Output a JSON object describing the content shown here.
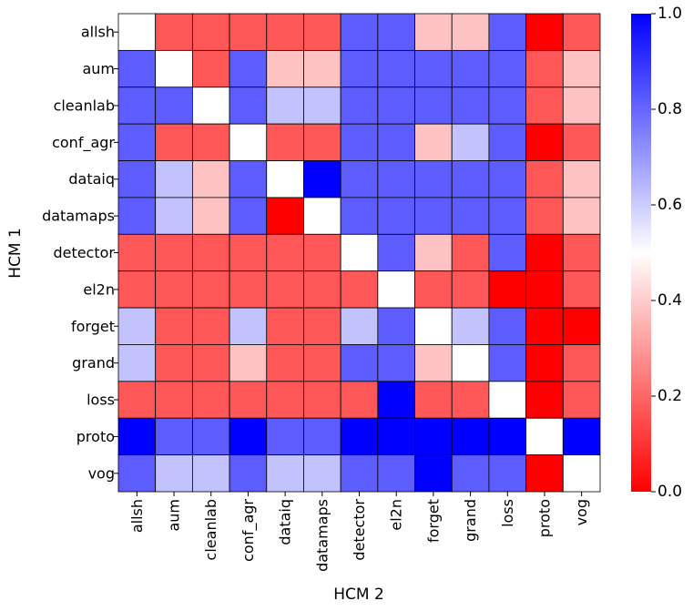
{
  "chart_data": {
    "type": "heatmap",
    "title": "",
    "xlabel": "HCM 2",
    "ylabel": "HCM 1",
    "rows": [
      "allsh",
      "aum",
      "cleanlab",
      "conf_agr",
      "dataiq",
      "datamaps",
      "detector",
      "el2n",
      "forget",
      "grand",
      "loss",
      "proto",
      "vog"
    ],
    "columns": [
      "allsh",
      "aum",
      "cleanlab",
      "conf_agr",
      "dataiq",
      "datamaps",
      "detector",
      "el2n",
      "forget",
      "grand",
      "loss",
      "proto",
      "vog"
    ],
    "values": [
      [
        0.5,
        0.17,
        0.17,
        0.17,
        0.17,
        0.17,
        0.82,
        0.82,
        0.38,
        0.38,
        0.82,
        0.0,
        0.17
      ],
      [
        0.82,
        0.5,
        0.17,
        0.82,
        0.38,
        0.38,
        0.82,
        0.82,
        0.82,
        0.82,
        0.82,
        0.17,
        0.38
      ],
      [
        0.82,
        0.82,
        0.5,
        0.82,
        0.62,
        0.62,
        0.82,
        0.82,
        0.82,
        0.82,
        0.82,
        0.17,
        0.38
      ],
      [
        0.82,
        0.17,
        0.17,
        0.5,
        0.17,
        0.17,
        0.82,
        0.82,
        0.38,
        0.62,
        0.82,
        0.0,
        0.17
      ],
      [
        0.82,
        0.62,
        0.38,
        0.82,
        0.5,
        1.0,
        0.82,
        0.82,
        0.82,
        0.82,
        0.82,
        0.17,
        0.38
      ],
      [
        0.82,
        0.62,
        0.38,
        0.82,
        0.0,
        0.5,
        0.82,
        0.82,
        0.82,
        0.82,
        0.82,
        0.17,
        0.38
      ],
      [
        0.17,
        0.17,
        0.17,
        0.17,
        0.17,
        0.17,
        0.5,
        0.82,
        0.38,
        0.17,
        0.82,
        0.0,
        0.17
      ],
      [
        0.17,
        0.17,
        0.17,
        0.17,
        0.17,
        0.17,
        0.17,
        0.5,
        0.17,
        0.17,
        0.0,
        0.0,
        0.17
      ],
      [
        0.62,
        0.17,
        0.17,
        0.62,
        0.17,
        0.17,
        0.62,
        0.82,
        0.5,
        0.62,
        0.82,
        0.0,
        0.0
      ],
      [
        0.62,
        0.17,
        0.17,
        0.38,
        0.17,
        0.17,
        0.82,
        0.82,
        0.38,
        0.5,
        0.82,
        0.0,
        0.17
      ],
      [
        0.17,
        0.17,
        0.17,
        0.17,
        0.17,
        0.17,
        0.17,
        1.0,
        0.17,
        0.17,
        0.5,
        0.0,
        0.17
      ],
      [
        1.0,
        0.82,
        0.82,
        1.0,
        0.82,
        0.82,
        1.0,
        1.0,
        1.0,
        1.0,
        1.0,
        0.5,
        1.0
      ],
      [
        0.82,
        0.62,
        0.62,
        0.82,
        0.62,
        0.62,
        0.82,
        0.82,
        1.0,
        0.82,
        0.82,
        0.0,
        0.5
      ]
    ],
    "colormap": {
      "name": "bwr_reversed",
      "low_color": "#ff0000",
      "mid_color": "#ffffff",
      "high_color": "#0000ff"
    },
    "vmin": 0.0,
    "vmax": 1.0,
    "colorbar_ticks": [
      "0.0",
      "0.2",
      "0.4",
      "0.6",
      "0.8",
      "1.0"
    ],
    "legend_position": "right"
  }
}
